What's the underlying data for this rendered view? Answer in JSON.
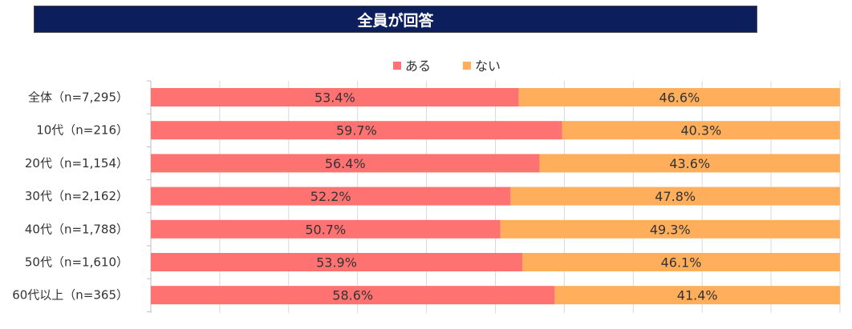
{
  "chart_data": {
    "type": "bar",
    "orientation": "horizontal",
    "stacked": true,
    "percent_stacked": true,
    "title": "全員が回答",
    "categories": [
      "全体（n=7,295）",
      "10代（n=216）",
      "20代（n=1,154）",
      "30代（n=2,162）",
      "40代（n=1,788）",
      "50代（n=1,610）",
      "60代以上（n=365）"
    ],
    "series": [
      {
        "name": "ある",
        "color": "#ff7272",
        "values": [
          53.4,
          59.7,
          56.4,
          52.2,
          50.7,
          53.9,
          58.6
        ],
        "labels": [
          "53.4%",
          "59.7%",
          "56.4%",
          "52.2%",
          "50.7%",
          "53.9%",
          "58.6%"
        ]
      },
      {
        "name": "ない",
        "color": "#ffae5c",
        "values": [
          46.6,
          40.3,
          43.6,
          47.8,
          49.3,
          46.1,
          41.4
        ],
        "labels": [
          "46.6%",
          "40.3%",
          "43.6%",
          "47.8%",
          "49.3%",
          "46.1%",
          "41.4%"
        ]
      }
    ],
    "xlim": [
      0,
      100
    ],
    "grid": true,
    "legend_position": "top"
  }
}
